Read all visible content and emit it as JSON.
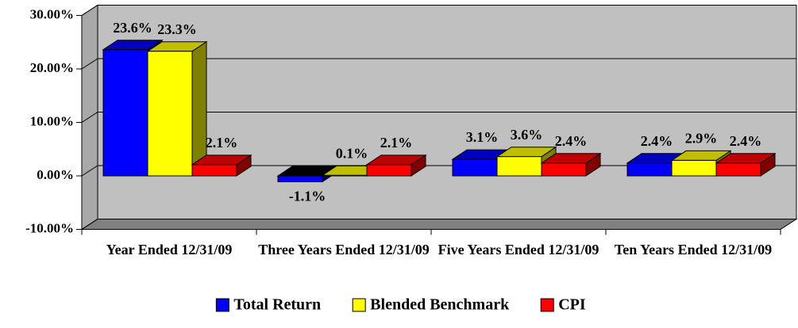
{
  "chart_data": {
    "type": "bar3d",
    "categories": [
      "Year Ended 12/31/09",
      "Three Years Ended 12/31/09",
      "Five Years Ended 12/31/09",
      "Ten Years Ended 12/31/09"
    ],
    "series": [
      {
        "name": "Total Return",
        "color": "#0000ff",
        "values": [
          23.6,
          -1.1,
          3.1,
          2.4
        ],
        "value_labels": [
          "23.6%",
          "-1.1%",
          "3.1%",
          "2.4%"
        ]
      },
      {
        "name": "Blended Benchmark",
        "color": "#ffff00",
        "values": [
          23.3,
          0.1,
          3.6,
          2.9
        ],
        "value_labels": [
          "23.3%",
          "0.1%",
          "3.6%",
          "2.9%"
        ]
      },
      {
        "name": "CPI",
        "color": "#ff0000",
        "values": [
          2.1,
          2.1,
          2.4,
          2.4
        ],
        "value_labels": [
          "2.1%",
          "2.1%",
          "2.4%",
          "2.4%"
        ]
      }
    ],
    "ylim": [
      -10,
      30
    ],
    "yticks": [
      {
        "value": -10,
        "label": "-10.00%"
      },
      {
        "value": 0,
        "label": "0.00%"
      },
      {
        "value": 10,
        "label": "10.00%"
      },
      {
        "value": 20,
        "label": "20.00%"
      },
      {
        "value": 30,
        "label": "30.00%"
      }
    ],
    "grid": true,
    "legend": "bottom"
  }
}
